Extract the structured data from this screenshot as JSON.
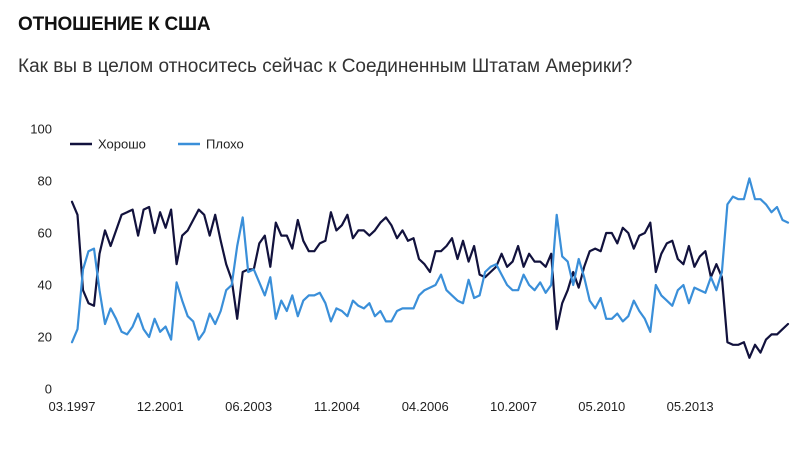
{
  "header": {
    "title": "ОТНОШЕНИЕ К США",
    "subtitle": "Как вы в целом относитесь сейчас к Соединенным Штатам Америки?"
  },
  "chart_data": {
    "type": "line",
    "title": "ОТНОШЕНИЕ К США",
    "subtitle": "Как вы в целом относитесь сейчас к Соединенным Штатам Америки?",
    "xlabel": "",
    "ylabel": "",
    "ylim": [
      0,
      100
    ],
    "yticks": [
      0,
      20,
      40,
      60,
      80,
      100
    ],
    "x_tick_labels": [
      "03.1997",
      "12.2001",
      "06.2003",
      "11.2004",
      "04.2006",
      "10.2007",
      "05.2010",
      "05.2013"
    ],
    "grid": false,
    "legend_position": "top-left",
    "series": [
      {
        "name": "Хорошо",
        "color": "#12123d",
        "values": [
          72,
          67,
          38,
          33,
          32,
          52,
          61,
          55,
          61,
          67,
          68,
          69,
          59,
          69,
          70,
          60,
          68,
          62,
          69,
          48,
          59,
          61,
          65,
          69,
          67,
          59,
          67,
          57,
          48,
          42,
          27,
          45,
          46,
          46,
          56,
          59,
          47,
          64,
          59,
          59,
          54,
          65,
          57,
          53,
          53,
          56,
          57,
          68,
          61,
          63,
          67,
          58,
          61,
          61,
          59,
          61,
          64,
          66,
          63,
          58,
          61,
          57,
          58,
          50,
          48,
          45,
          53,
          53,
          55,
          58,
          50,
          57,
          49,
          55,
          44,
          43,
          45,
          47,
          52,
          47,
          49,
          55,
          47,
          52,
          49,
          49,
          47,
          52,
          23,
          33,
          38,
          45,
          39,
          47,
          53,
          54,
          53,
          60,
          60,
          56,
          62,
          60,
          54,
          59,
          60,
          64,
          45,
          52,
          56,
          57,
          50,
          48,
          55,
          47,
          51,
          53,
          43,
          48,
          43,
          18,
          17,
          17,
          18,
          12,
          17,
          14,
          19,
          21,
          21,
          23,
          25
        ]
      },
      {
        "name": "Плохо",
        "color": "#3a8fd9",
        "values": [
          18,
          23,
          46,
          53,
          54,
          38,
          25,
          31,
          27,
          22,
          21,
          24,
          29,
          23,
          20,
          27,
          22,
          24,
          19,
          41,
          34,
          28,
          26,
          19,
          22,
          29,
          25,
          30,
          38,
          40,
          55,
          66,
          45,
          46,
          41,
          36,
          43,
          27,
          34,
          30,
          36,
          28,
          34,
          36,
          36,
          37,
          33,
          26,
          31,
          30,
          28,
          34,
          32,
          31,
          33,
          28,
          30,
          26,
          26,
          30,
          31,
          31,
          31,
          36,
          38,
          39,
          40,
          44,
          38,
          36,
          34,
          33,
          42,
          35,
          36,
          45,
          47,
          48,
          44,
          40,
          38,
          38,
          44,
          40,
          38,
          41,
          37,
          40,
          67,
          51,
          49,
          40,
          50,
          43,
          34,
          31,
          35,
          27,
          27,
          29,
          26,
          28,
          34,
          30,
          27,
          22,
          40,
          36,
          34,
          32,
          38,
          40,
          33,
          39,
          38,
          37,
          43,
          38,
          45,
          71,
          74,
          73,
          73,
          81,
          73,
          73,
          71,
          68,
          70,
          65,
          64
        ]
      }
    ]
  }
}
